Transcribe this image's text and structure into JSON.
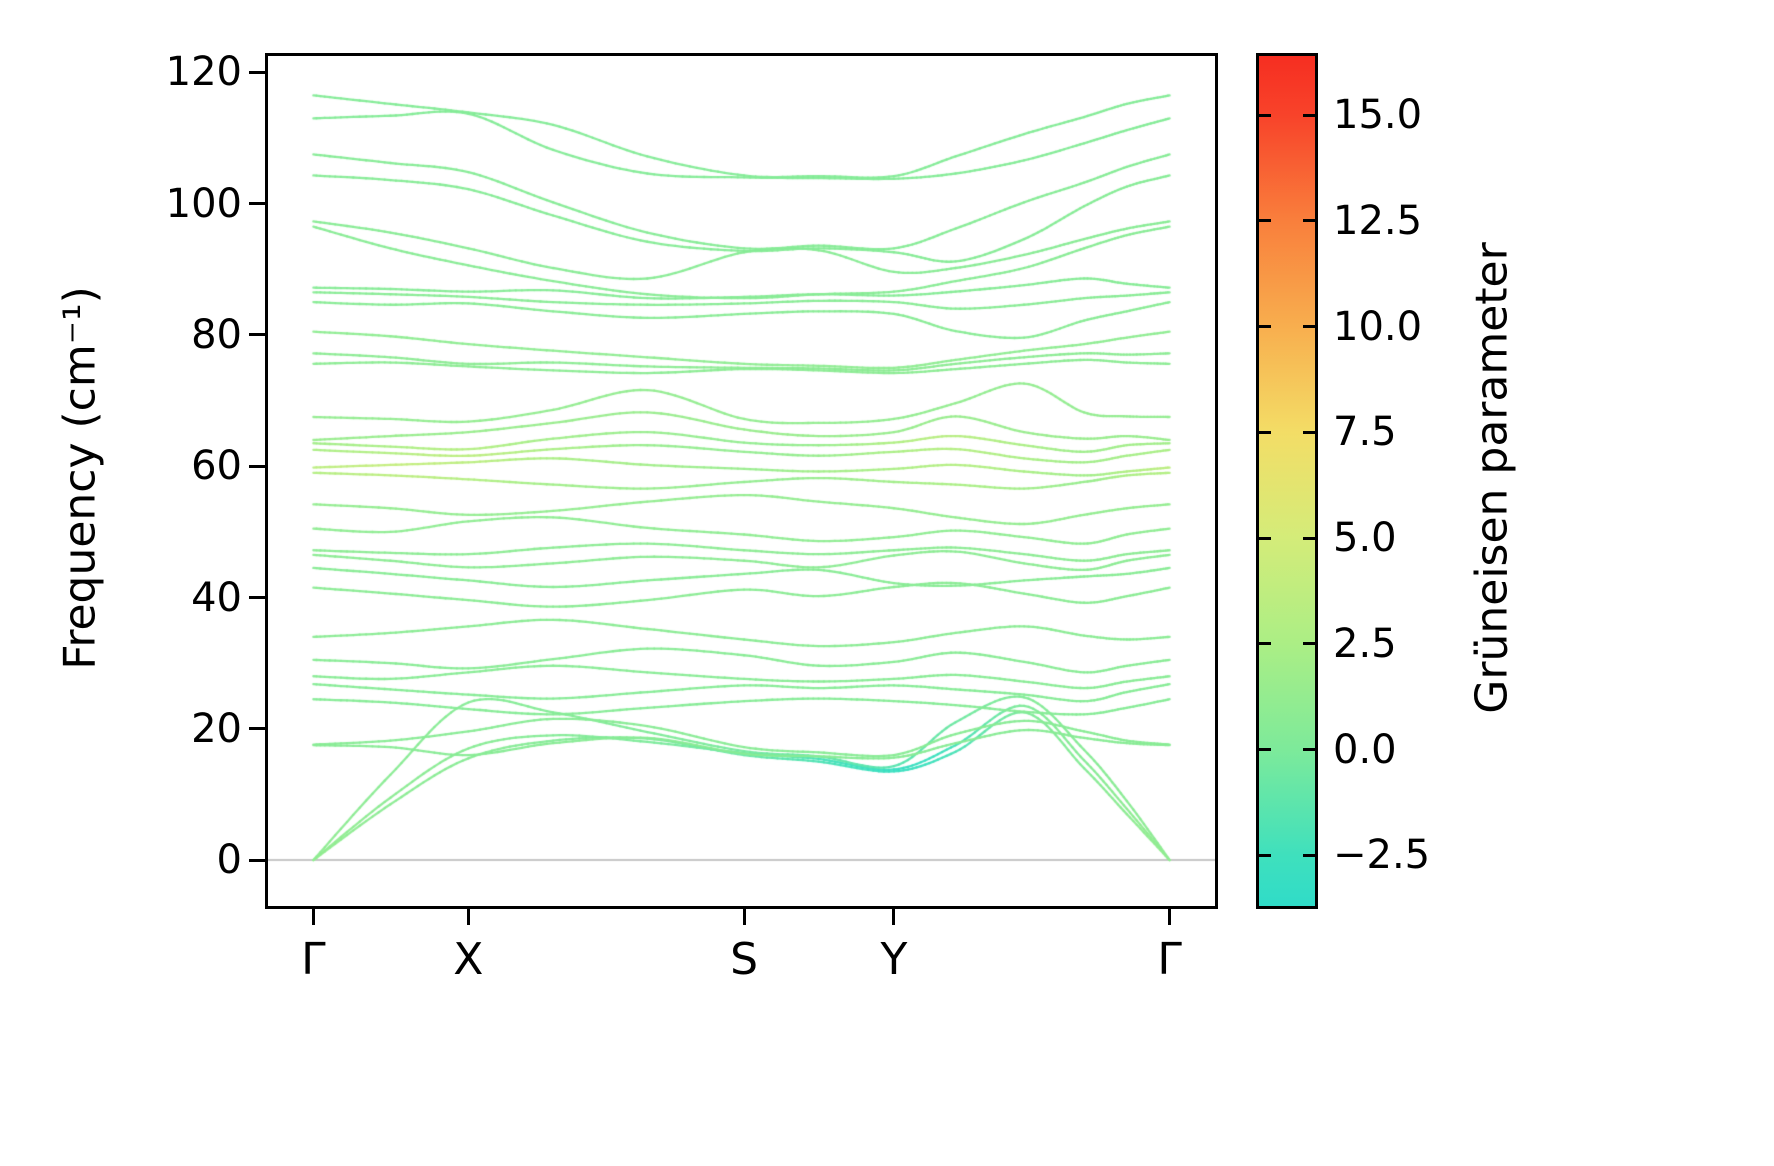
{
  "figure": {
    "ylabel": "Frequency (cm⁻¹)",
    "colorbar_label": "Grüneisen parameter",
    "yticks": [
      0,
      20,
      40,
      60,
      80,
      100,
      120
    ],
    "xticks": [
      {
        "label": "Γ",
        "pos": 0.0
      },
      {
        "label": "X",
        "pos": 0.181
      },
      {
        "label": "S",
        "pos": 0.503
      },
      {
        "label": "Y",
        "pos": 0.678
      },
      {
        "label": "Γ",
        "pos": 1.0
      }
    ],
    "colorbar_ticks": [
      {
        "value": 15.0,
        "label": "15.0"
      },
      {
        "value": 12.5,
        "label": "12.5"
      },
      {
        "value": 10.0,
        "label": "10.0"
      },
      {
        "value": 7.5,
        "label": "7.5"
      },
      {
        "value": 5.0,
        "label": "5.0"
      },
      {
        "value": 2.5,
        "label": "2.5"
      },
      {
        "value": 0.0,
        "label": "0.0"
      },
      {
        "value": -2.5,
        "label": "−2.5"
      }
    ],
    "zero_line_color": "#b3b3b3",
    "axes_color": "#000000"
  },
  "chart_data": {
    "type": "line",
    "title": "",
    "xlabel": "",
    "ylabel": "Frequency (cm⁻¹)",
    "description": "Phonon dispersion along Γ-X-S-Y-Γ colored by mode Grüneisen parameter",
    "xlim": [
      -0.053,
      1.053
    ],
    "ylim": [
      -7,
      122.5
    ],
    "x_path": [
      0,
      0.09,
      0.181,
      0.28,
      0.39,
      0.503,
      0.59,
      0.678,
      0.75,
      0.83,
      0.9,
      0.95,
      1.0
    ],
    "colormap": {
      "vmin": -3.7,
      "vmax": 16.4,
      "stops": [
        [
          -3.7,
          "#30dcc8"
        ],
        [
          -2.5,
          "#3fe0bd"
        ],
        [
          0.0,
          "#7dea9a"
        ],
        [
          2.5,
          "#abee85"
        ],
        [
          5.0,
          "#d4ec79"
        ],
        [
          7.5,
          "#f3dd66"
        ],
        [
          10.0,
          "#f8ae4e"
        ],
        [
          12.5,
          "#f97f3c"
        ],
        [
          15.0,
          "#f8432a"
        ],
        [
          16.4,
          "#f62e21"
        ]
      ]
    },
    "bands": [
      {
        "freqs": [
          0,
          8.5,
          15.5,
          18.2,
          18.5,
          16.0,
          15.0,
          13.5,
          16.5,
          22.5,
          14.0,
          7.0,
          0
        ],
        "gruneisen": [
          1.2,
          0.8,
          0.6,
          0.4,
          0.0,
          -0.8,
          -1.8,
          -2.8,
          -2.0,
          0.0,
          0.5,
          0.9,
          1.2
        ]
      },
      {
        "freqs": [
          0,
          9.5,
          17.0,
          19.0,
          18.0,
          16.3,
          15.4,
          13.8,
          17.5,
          23.5,
          15.2,
          7.8,
          0
        ],
        "gruneisen": [
          1.2,
          0.8,
          0.6,
          0.4,
          0.0,
          -1.0,
          -2.0,
          -3.0,
          -2.2,
          0.1,
          0.5,
          0.9,
          1.2
        ]
      },
      {
        "freqs": [
          0,
          13.0,
          24.0,
          22.5,
          19.5,
          16.6,
          15.8,
          14.3,
          21.0,
          24.8,
          16.8,
          9.0,
          0
        ],
        "gruneisen": [
          1.0,
          0.7,
          0.5,
          0.4,
          0.2,
          -0.3,
          -0.9,
          -1.5,
          -0.6,
          0.3,
          0.5,
          0.7,
          1.0
        ]
      },
      {
        "freqs": [
          17.5,
          17.2,
          16.0,
          17.8,
          18.6,
          16.2,
          15.8,
          15.6,
          17.8,
          19.8,
          18.6,
          17.8,
          17.5
        ],
        "gruneisen": 0.6
      },
      {
        "freqs": [
          17.6,
          18.2,
          19.6,
          21.5,
          20.4,
          17.2,
          16.4,
          16.0,
          19.2,
          21.2,
          19.6,
          18.2,
          17.6
        ],
        "gruneisen": 0.6
      },
      {
        "freqs": [
          24.5,
          24.0,
          23.0,
          22.2,
          23.2,
          24.2,
          24.6,
          24.2,
          23.6,
          22.6,
          22.2,
          23.2,
          24.5
        ],
        "gruneisen": 0.5
      },
      {
        "freqs": [
          26.8,
          26.0,
          25.2,
          24.6,
          25.6,
          26.6,
          26.2,
          26.6,
          26.0,
          25.2,
          24.2,
          25.6,
          26.8
        ],
        "gruneisen": 0.5
      },
      {
        "freqs": [
          28.0,
          27.6,
          28.6,
          29.6,
          28.6,
          27.6,
          27.2,
          27.6,
          28.2,
          27.2,
          26.2,
          27.2,
          28.0
        ],
        "gruneisen": 0.6
      },
      {
        "freqs": [
          30.5,
          30.0,
          29.2,
          30.6,
          32.2,
          31.2,
          29.6,
          30.2,
          31.6,
          30.2,
          28.6,
          29.6,
          30.5
        ],
        "gruneisen": 0.6
      },
      {
        "freqs": [
          34.0,
          34.6,
          35.6,
          36.6,
          35.2,
          33.6,
          32.6,
          33.2,
          34.6,
          35.6,
          34.2,
          33.6,
          34.0
        ],
        "gruneisen": 0.7
      },
      {
        "freqs": [
          41.5,
          40.6,
          39.6,
          38.6,
          39.6,
          41.2,
          40.2,
          41.6,
          42.2,
          40.6,
          39.2,
          40.2,
          41.5
        ],
        "gruneisen": 0.7
      },
      {
        "freqs": [
          44.5,
          43.6,
          42.6,
          41.6,
          42.6,
          43.6,
          44.2,
          42.2,
          41.8,
          42.6,
          43.2,
          43.6,
          44.5
        ],
        "gruneisen": 0.6
      },
      {
        "freqs": [
          46.5,
          45.6,
          44.6,
          45.2,
          46.2,
          45.6,
          44.6,
          46.4,
          47.0,
          45.2,
          44.2,
          45.6,
          46.5
        ],
        "gruneisen": 0.8
      },
      {
        "freqs": [
          47.2,
          46.8,
          46.6,
          47.6,
          48.2,
          47.2,
          46.6,
          47.2,
          47.6,
          46.6,
          45.6,
          46.6,
          47.2
        ],
        "gruneisen": 0.8
      },
      {
        "freqs": [
          50.5,
          50.0,
          51.6,
          52.2,
          50.6,
          49.6,
          48.6,
          49.2,
          50.2,
          49.2,
          48.2,
          49.6,
          50.5
        ],
        "gruneisen": 1.0
      },
      {
        "freqs": [
          54.2,
          53.6,
          52.6,
          53.2,
          54.6,
          55.6,
          54.6,
          53.6,
          52.2,
          51.2,
          52.6,
          53.6,
          54.2
        ],
        "gruneisen": 1.2
      },
      {
        "freqs": [
          59.0,
          58.6,
          58.0,
          57.2,
          56.6,
          57.6,
          58.2,
          57.6,
          57.2,
          56.6,
          57.6,
          58.6,
          59.0
        ],
        "gruneisen": [
          3.0,
          3.5,
          3.0,
          2.0,
          1.5,
          1.2,
          1.5,
          2.0,
          2.5,
          2.0,
          1.5,
          2.5,
          3.0
        ]
      },
      {
        "freqs": [
          59.8,
          60.2,
          60.6,
          61.2,
          60.2,
          59.6,
          59.2,
          59.6,
          60.2,
          59.2,
          58.6,
          59.2,
          59.8
        ],
        "gruneisen": [
          3.5,
          4.0,
          3.5,
          2.5,
          2.0,
          1.5,
          2.0,
          2.5,
          3.0,
          2.5,
          2.0,
          2.8,
          3.5
        ]
      },
      {
        "freqs": [
          62.5,
          62.0,
          61.6,
          62.6,
          63.2,
          62.2,
          61.6,
          62.2,
          62.6,
          61.2,
          60.6,
          61.6,
          62.5
        ],
        "gruneisen": [
          2.5,
          3.0,
          3.5,
          2.5,
          1.5,
          1.2,
          1.5,
          2.5,
          3.0,
          2.5,
          2.0,
          2.2,
          2.5
        ]
      },
      {
        "freqs": [
          63.5,
          63.0,
          62.6,
          64.2,
          65.2,
          63.6,
          63.2,
          63.6,
          64.6,
          63.2,
          62.2,
          63.2,
          63.5
        ],
        "gruneisen": [
          2.0,
          2.5,
          3.0,
          2.0,
          1.5,
          1.2,
          1.5,
          2.8,
          3.2,
          2.5,
          1.8,
          2.0,
          2.0
        ]
      },
      {
        "freqs": [
          64.0,
          64.6,
          65.2,
          66.6,
          68.2,
          65.6,
          64.6,
          65.2,
          67.6,
          65.2,
          64.2,
          64.6,
          64.0
        ],
        "gruneisen": 1.5
      },
      {
        "freqs": [
          67.5,
          67.2,
          66.8,
          68.6,
          71.6,
          67.2,
          66.6,
          67.2,
          69.6,
          72.6,
          68.2,
          67.6,
          67.5
        ],
        "gruneisen": 1.2
      },
      {
        "freqs": [
          75.6,
          75.8,
          75.2,
          74.6,
          74.2,
          74.8,
          74.6,
          74.2,
          74.8,
          75.6,
          76.2,
          75.8,
          75.6
        ],
        "gruneisen": 0.8
      },
      {
        "freqs": [
          77.2,
          76.6,
          75.6,
          75.8,
          75.2,
          75.0,
          74.9,
          74.6,
          75.6,
          76.6,
          77.2,
          77.0,
          77.2
        ],
        "gruneisen": 0.8
      },
      {
        "freqs": [
          80.5,
          79.8,
          78.6,
          77.6,
          76.6,
          75.6,
          75.3,
          75.0,
          76.2,
          77.6,
          78.6,
          79.6,
          80.5
        ],
        "gruneisen": 1.0
      },
      {
        "freqs": [
          85.0,
          84.6,
          84.8,
          83.6,
          82.6,
          83.2,
          83.6,
          83.2,
          80.6,
          79.6,
          82.2,
          83.6,
          85.0
        ],
        "gruneisen": 0.6
      },
      {
        "freqs": [
          86.5,
          86.2,
          85.8,
          85.0,
          84.6,
          84.8,
          85.2,
          85.0,
          84.0,
          84.6,
          85.6,
          86.0,
          86.5
        ],
        "gruneisen": 0.6
      },
      {
        "freqs": [
          87.2,
          87.0,
          86.6,
          86.8,
          85.6,
          85.8,
          86.2,
          86.0,
          86.6,
          87.6,
          88.6,
          87.8,
          87.2
        ],
        "gruneisen": 0.5
      },
      {
        "freqs": [
          96.5,
          93.2,
          90.6,
          88.2,
          86.2,
          85.6,
          86.2,
          86.6,
          88.2,
          90.2,
          93.2,
          95.2,
          96.5
        ],
        "gruneisen": 0.6
      },
      {
        "freqs": [
          97.3,
          95.6,
          93.2,
          90.2,
          88.6,
          92.6,
          92.9,
          89.6,
          90.2,
          92.2,
          94.6,
          96.2,
          97.3
        ],
        "gruneisen": 0.6
      },
      {
        "freqs": [
          104.3,
          103.6,
          102.2,
          98.2,
          94.2,
          92.8,
          93.2,
          92.6,
          91.2,
          94.6,
          99.6,
          102.6,
          104.3
        ],
        "gruneisen": 0.5
      },
      {
        "freqs": [
          107.5,
          106.2,
          104.8,
          100.2,
          95.6,
          93.2,
          93.6,
          93.2,
          96.2,
          100.2,
          103.2,
          105.6,
          107.5
        ],
        "gruneisen": 0.5
      },
      {
        "freqs": [
          113.0,
          113.4,
          113.7,
          108.2,
          104.6,
          104.0,
          103.9,
          103.8,
          104.6,
          106.6,
          109.2,
          111.2,
          113.0
        ],
        "gruneisen": 0.4
      },
      {
        "freqs": [
          116.5,
          115.2,
          113.9,
          112.0,
          107.2,
          104.3,
          104.2,
          104.2,
          107.2,
          110.6,
          113.2,
          115.2,
          116.5
        ],
        "gruneisen": 0.4
      }
    ]
  }
}
